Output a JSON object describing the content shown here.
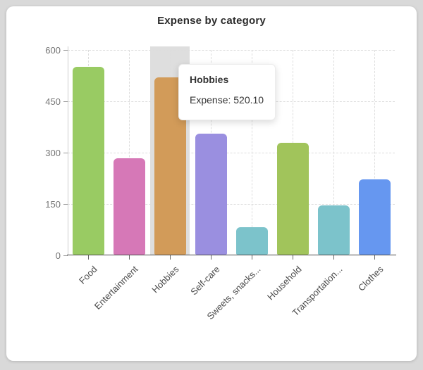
{
  "card": {
    "title": "Expense by category"
  },
  "chart_data": {
    "type": "bar",
    "title": "Expense by category",
    "categories": [
      "Food",
      "Entertainment",
      "Hobbies",
      "Self-care",
      "Sweets, snacks...",
      "Household",
      "Transportation...",
      "Clothes"
    ],
    "values": [
      550,
      283,
      520.1,
      356,
      82,
      328,
      145,
      222
    ],
    "bar_colors": [
      "#99CB63",
      "#D678B7",
      "#D29B59",
      "#9A8FE0",
      "#7CC3CB",
      "#A1C45B",
      "#7CC3CB",
      "#6697F0"
    ],
    "xlabel": "",
    "ylabel": "",
    "ylim": [
      0,
      600
    ],
    "yticks": [
      0,
      150,
      300,
      450,
      600
    ],
    "grid": true,
    "legend": "none",
    "highlighted_index": 2,
    "highlight_band_color": "#dedede"
  },
  "tooltip": {
    "title": "Hobbies",
    "value_label": "Expense: 520.10"
  }
}
